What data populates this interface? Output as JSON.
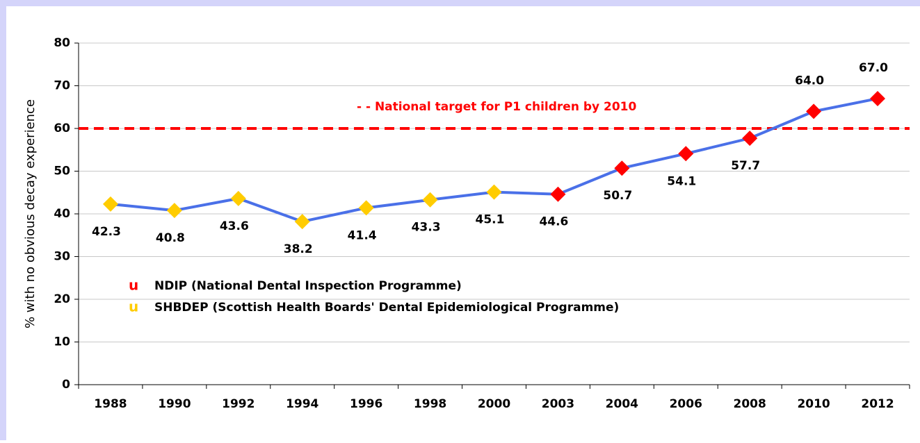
{
  "chart_data": {
    "type": "line",
    "categories": [
      "1988",
      "1990",
      "1992",
      "1994",
      "1996",
      "1998",
      "2000",
      "2003",
      "2004",
      "2006",
      "2008",
      "2010",
      "2012"
    ],
    "series": [
      {
        "name": "NDIP (National Dental Inspection Programme)",
        "color": "#ff0000",
        "values": [
          null,
          null,
          null,
          null,
          null,
          null,
          null,
          44.6,
          50.7,
          54.1,
          57.7,
          64.0,
          67.0
        ],
        "value_labels": [
          null,
          null,
          null,
          null,
          null,
          null,
          null,
          "44.6",
          "50.7",
          "54.1",
          "57.7",
          "64.0",
          "67.0"
        ]
      },
      {
        "name": "SHBDEP (Scottish Health Boards' Dental Epidemiological Programme)",
        "color": "#ffcc00",
        "values": [
          42.3,
          40.8,
          43.6,
          38.2,
          41.4,
          43.3,
          45.1,
          null,
          null,
          null,
          null,
          null,
          null
        ],
        "value_labels": [
          "42.3",
          "40.8",
          "43.6",
          "38.2",
          "41.4",
          "43.3",
          "45.1",
          null,
          null,
          null,
          null,
          null,
          null
        ]
      }
    ],
    "line_color": "#4a70e8",
    "legend_marker": "u",
    "ylabel": "% with no obvious decay experience",
    "ylim": [
      0,
      80
    ],
    "yticks": [
      0,
      10,
      20,
      30,
      40,
      50,
      60,
      70,
      80
    ],
    "grid": true,
    "reference_line": {
      "value": 60,
      "color": "#ff0000",
      "label": "- - National target for P1 children by 2010"
    }
  }
}
